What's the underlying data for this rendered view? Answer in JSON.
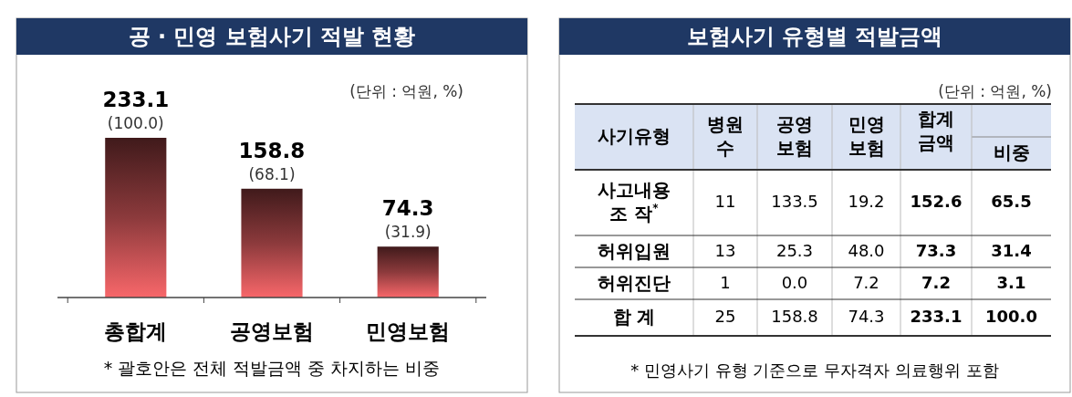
{
  "chart_data": [
    {
      "type": "bar",
      "title": "공 · 민영 보험사기 적발 현황",
      "categories": [
        "총합계",
        "공영보험",
        "민영보험"
      ],
      "values": [
        233.1,
        158.8,
        74.3
      ],
      "color": "#8c3a3c",
      "value_labels": [
        "233.1\n(100.0)",
        "158.8\n(68.1)",
        "74.3\n(31.9)"
      ],
      "annotations": [
        "(단위 : 억원, %)",
        "* 괄호안은 전체 적발금액 중 차지하는 비중"
      ]
    },
    {
      "type": "other",
      "title": "보험사기 유형별 적발금액",
      "annotations": [
        "(단위 : 억원, %)",
        "사기유형",
        "병원\n수",
        "공영\n보험",
        "민영\n보험",
        "합계\n금액",
        "비중",
        "사고내용\n조      작$^{*}$",
        "11",
        "133.5",
        "19.2",
        "152.6",
        "65.5",
        "허위입원",
        "13",
        "25.3",
        "48.0",
        "73.3",
        "31.4",
        "허위진단",
        "1",
        "0.0",
        "7.2",
        "7.2",
        "3.1",
        "합    계",
        "25",
        "158.8",
        "74.3",
        "233.1",
        "100.0",
        "* 민영사기 유형 기준으로 무자격자 의료행위 포함"
      ]
    }
  ]
}
